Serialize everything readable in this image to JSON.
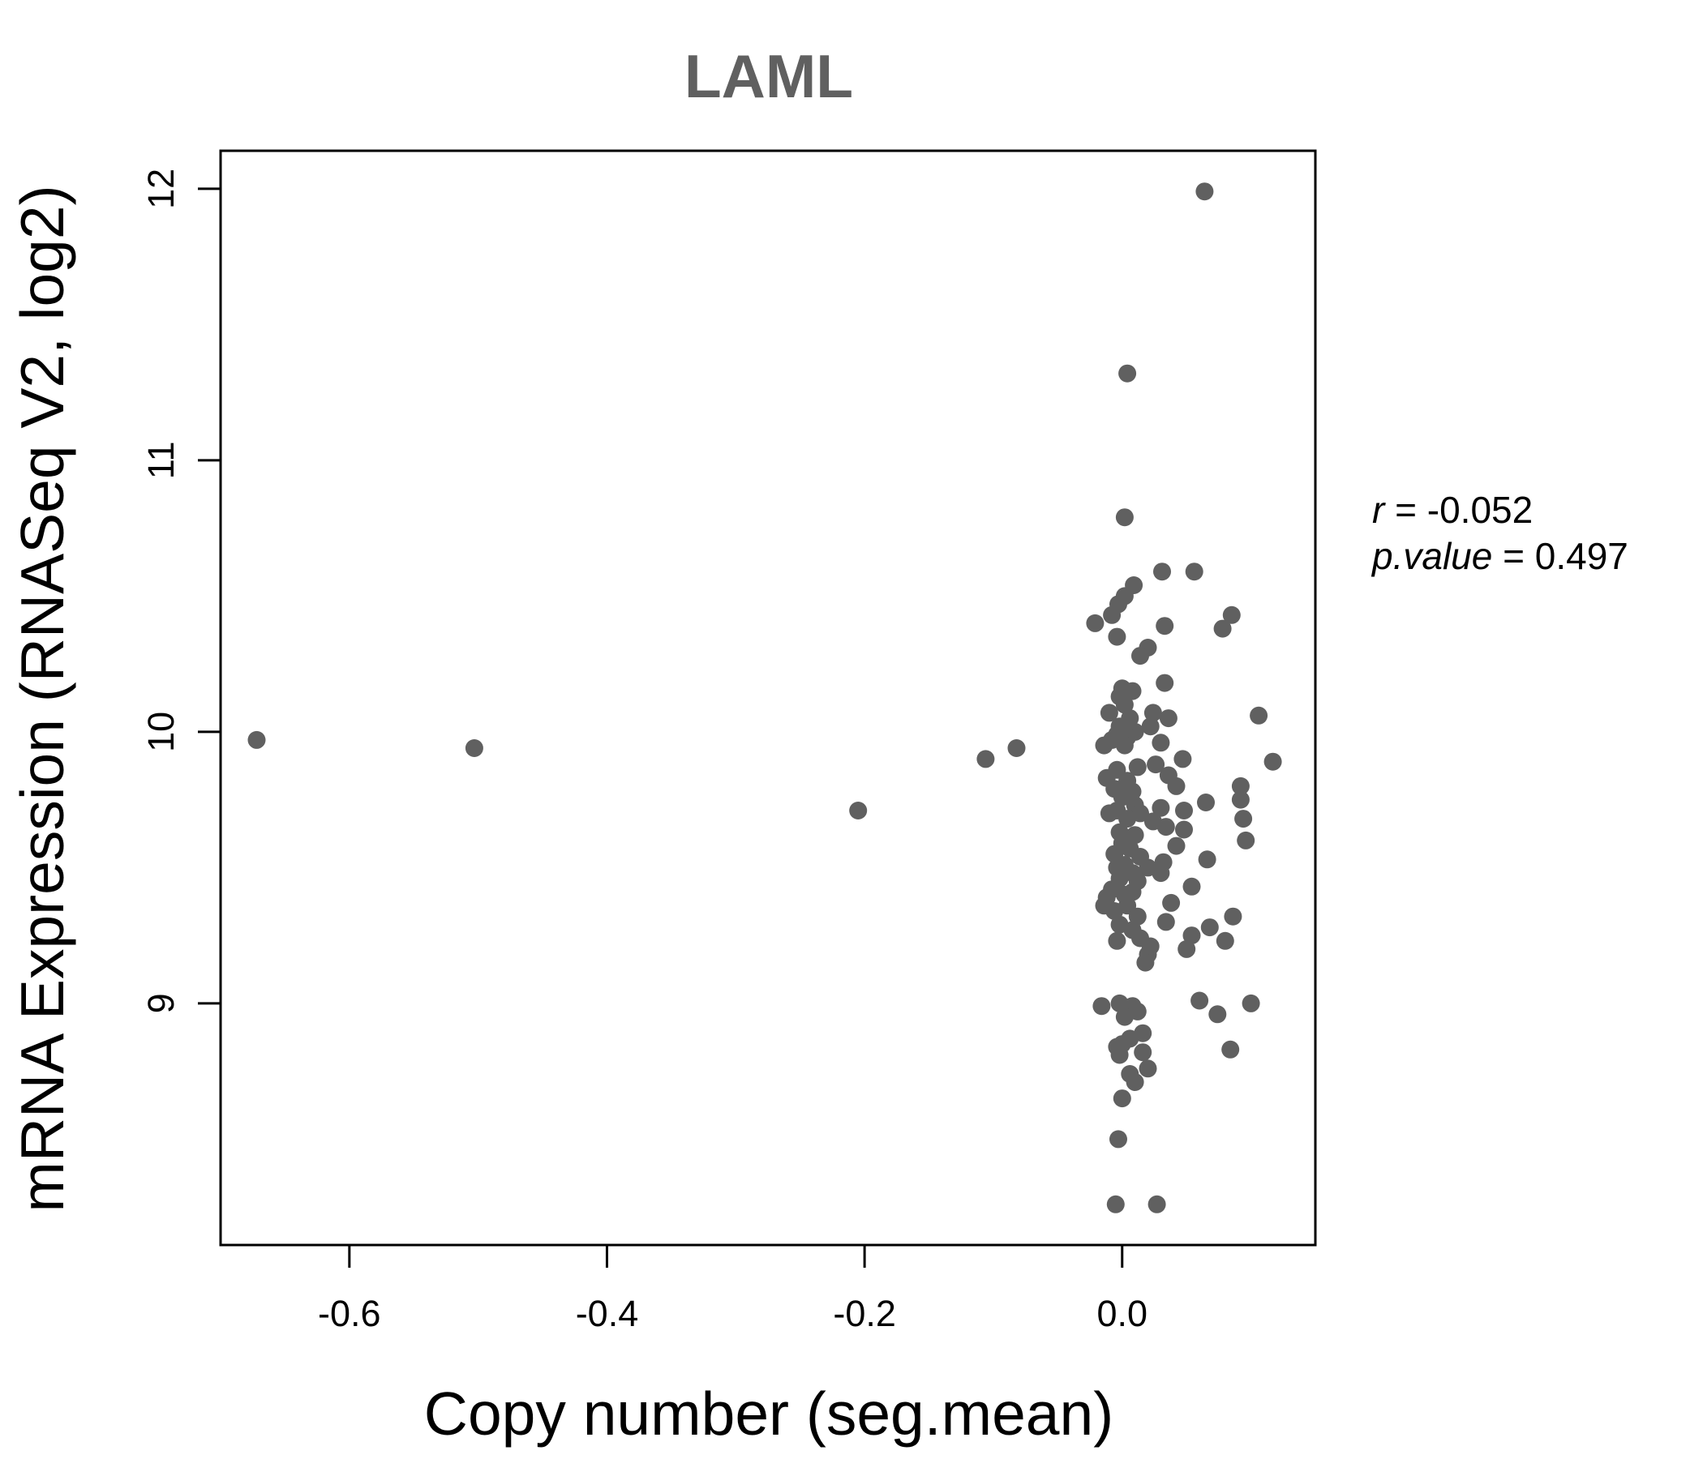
{
  "chart_data": {
    "type": "scatter",
    "title": "LAML",
    "xlabel": "Copy number (seg.mean)",
    "ylabel": "mRNA Expression (RNASeq V2, log2)",
    "xlim": [
      -0.7,
      0.15
    ],
    "ylim": [
      8.11,
      12.14
    ],
    "x_ticks": [
      -0.6,
      -0.4,
      -0.2,
      0.0
    ],
    "x_tick_labels": [
      "-0.6",
      "-0.4",
      "-0.2",
      "0.0"
    ],
    "y_ticks": [
      9,
      10,
      11,
      12
    ],
    "y_tick_labels": [
      "9",
      "10",
      "11",
      "12"
    ],
    "point_color": "#606060",
    "grid": false,
    "legend": "none",
    "annotations": {
      "r_label": "r",
      "r_value": "-0.052",
      "p_label": "p.value",
      "p_value": "0.497"
    },
    "points": [
      {
        "x": -0.672,
        "y": 9.97
      },
      {
        "x": -0.503,
        "y": 9.94
      },
      {
        "x": -0.205,
        "y": 9.71
      },
      {
        "x": -0.106,
        "y": 9.9
      },
      {
        "x": -0.082,
        "y": 9.94
      },
      {
        "x": 0.064,
        "y": 11.99
      },
      {
        "x": 0.004,
        "y": 11.32
      },
      {
        "x": 0.002,
        "y": 10.79
      },
      {
        "x": 0.031,
        "y": 10.59
      },
      {
        "x": 0.056,
        "y": 10.59
      },
      {
        "x": 0.009,
        "y": 10.54
      },
      {
        "x": 0.002,
        "y": 10.5
      },
      {
        "x": -0.003,
        "y": 10.47
      },
      {
        "x": -0.008,
        "y": 10.43
      },
      {
        "x": 0.085,
        "y": 10.43
      },
      {
        "x": -0.021,
        "y": 10.4
      },
      {
        "x": 0.033,
        "y": 10.39
      },
      {
        "x": 0.078,
        "y": 10.38
      },
      {
        "x": -0.004,
        "y": 10.35
      },
      {
        "x": 0.02,
        "y": 10.31
      },
      {
        "x": 0.014,
        "y": 10.28
      },
      {
        "x": 0.033,
        "y": 10.18
      },
      {
        "x": 0.0,
        "y": 10.16
      },
      {
        "x": 0.008,
        "y": 10.15
      },
      {
        "x": -0.002,
        "y": 10.13
      },
      {
        "x": 0.002,
        "y": 10.1
      },
      {
        "x": 0.106,
        "y": 10.06
      },
      {
        "x": -0.01,
        "y": 10.07
      },
      {
        "x": 0.024,
        "y": 10.07
      },
      {
        "x": 0.036,
        "y": 10.05
      },
      {
        "x": 0.006,
        "y": 10.05
      },
      {
        "x": -0.002,
        "y": 10.02
      },
      {
        "x": 0.022,
        "y": 10.02
      },
      {
        "x": 0.01,
        "y": 10.0
      },
      {
        "x": -0.004,
        "y": 9.99
      },
      {
        "x": 0.004,
        "y": 9.98
      },
      {
        "x": -0.008,
        "y": 9.97
      },
      {
        "x": 0.03,
        "y": 9.96
      },
      {
        "x": -0.014,
        "y": 9.95
      },
      {
        "x": 0.002,
        "y": 9.95
      },
      {
        "x": 0.047,
        "y": 9.9
      },
      {
        "x": 0.117,
        "y": 9.89
      },
      {
        "x": 0.026,
        "y": 9.88
      },
      {
        "x": 0.012,
        "y": 9.87
      },
      {
        "x": -0.004,
        "y": 9.86
      },
      {
        "x": 0.036,
        "y": 9.84
      },
      {
        "x": -0.012,
        "y": 9.83
      },
      {
        "x": 0.004,
        "y": 9.82
      },
      {
        "x": 0.042,
        "y": 9.8
      },
      {
        "x": 0.092,
        "y": 9.8
      },
      {
        "x": -0.006,
        "y": 9.79
      },
      {
        "x": 0.008,
        "y": 9.78
      },
      {
        "x": 0.0,
        "y": 9.76
      },
      {
        "x": 0.065,
        "y": 9.74
      },
      {
        "x": 0.092,
        "y": 9.75
      },
      {
        "x": 0.01,
        "y": 9.73
      },
      {
        "x": 0.03,
        "y": 9.72
      },
      {
        "x": -0.004,
        "y": 9.71
      },
      {
        "x": 0.048,
        "y": 9.71
      },
      {
        "x": -0.01,
        "y": 9.7
      },
      {
        "x": 0.014,
        "y": 9.7
      },
      {
        "x": 0.004,
        "y": 9.68
      },
      {
        "x": 0.094,
        "y": 9.68
      },
      {
        "x": 0.024,
        "y": 9.67
      },
      {
        "x": 0.034,
        "y": 9.65
      },
      {
        "x": 0.048,
        "y": 9.64
      },
      {
        "x": -0.002,
        "y": 9.63
      },
      {
        "x": 0.01,
        "y": 9.62
      },
      {
        "x": 0.096,
        "y": 9.6
      },
      {
        "x": 0.0,
        "y": 9.59
      },
      {
        "x": 0.042,
        "y": 9.58
      },
      {
        "x": 0.006,
        "y": 9.57
      },
      {
        "x": -0.006,
        "y": 9.55
      },
      {
        "x": 0.014,
        "y": 9.54
      },
      {
        "x": 0.066,
        "y": 9.53
      },
      {
        "x": 0.032,
        "y": 9.52
      },
      {
        "x": 0.002,
        "y": 9.51
      },
      {
        "x": -0.004,
        "y": 9.5
      },
      {
        "x": 0.02,
        "y": 9.5
      },
      {
        "x": 0.03,
        "y": 9.48
      },
      {
        "x": 0.008,
        "y": 9.48
      },
      {
        "x": -0.002,
        "y": 9.46
      },
      {
        "x": 0.012,
        "y": 9.45
      },
      {
        "x": 0.054,
        "y": 9.43
      },
      {
        "x": -0.008,
        "y": 9.42
      },
      {
        "x": 0.008,
        "y": 9.41
      },
      {
        "x": 0.002,
        "y": 9.4
      },
      {
        "x": -0.012,
        "y": 9.39
      },
      {
        "x": 0.038,
        "y": 9.37
      },
      {
        "x": -0.014,
        "y": 9.36
      },
      {
        "x": 0.004,
        "y": 9.36
      },
      {
        "x": -0.006,
        "y": 9.34
      },
      {
        "x": 0.086,
        "y": 9.32
      },
      {
        "x": 0.012,
        "y": 9.32
      },
      {
        "x": 0.034,
        "y": 9.3
      },
      {
        "x": -0.002,
        "y": 9.29
      },
      {
        "x": 0.068,
        "y": 9.28
      },
      {
        "x": 0.008,
        "y": 9.27
      },
      {
        "x": 0.054,
        "y": 9.25
      },
      {
        "x": 0.014,
        "y": 9.24
      },
      {
        "x": -0.004,
        "y": 9.23
      },
      {
        "x": 0.08,
        "y": 9.23
      },
      {
        "x": 0.022,
        "y": 9.21
      },
      {
        "x": 0.05,
        "y": 9.2
      },
      {
        "x": 0.02,
        "y": 9.18
      },
      {
        "x": 0.018,
        "y": 9.15
      },
      {
        "x": 0.06,
        "y": 9.01
      },
      {
        "x": 0.1,
        "y": 9.0
      },
      {
        "x": -0.016,
        "y": 8.99
      },
      {
        "x": -0.002,
        "y": 9.0
      },
      {
        "x": 0.008,
        "y": 8.99
      },
      {
        "x": 0.012,
        "y": 8.97
      },
      {
        "x": 0.074,
        "y": 8.96
      },
      {
        "x": 0.002,
        "y": 8.95
      },
      {
        "x": 0.016,
        "y": 8.89
      },
      {
        "x": 0.006,
        "y": 8.87
      },
      {
        "x": -0.004,
        "y": 8.84
      },
      {
        "x": 0.0,
        "y": 8.85
      },
      {
        "x": 0.084,
        "y": 8.83
      },
      {
        "x": 0.016,
        "y": 8.82
      },
      {
        "x": -0.002,
        "y": 8.81
      },
      {
        "x": 0.02,
        "y": 8.76
      },
      {
        "x": 0.006,
        "y": 8.74
      },
      {
        "x": 0.01,
        "y": 8.71
      },
      {
        "x": 0.0,
        "y": 8.65
      },
      {
        "x": -0.003,
        "y": 8.5
      },
      {
        "x": -0.005,
        "y": 8.26
      },
      {
        "x": 0.027,
        "y": 8.26
      }
    ]
  }
}
